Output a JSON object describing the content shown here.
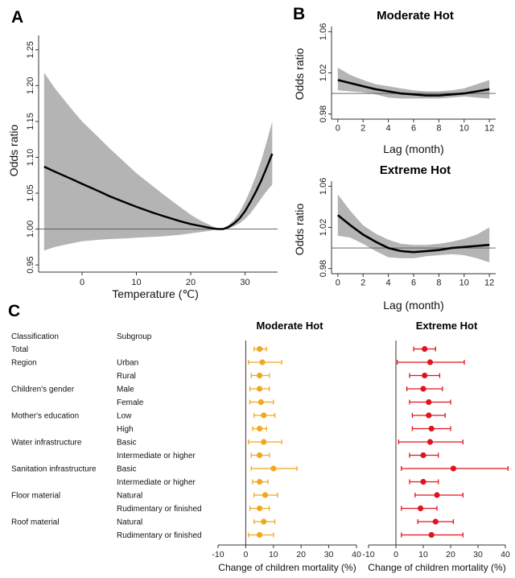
{
  "chart_data": [
    {
      "panel": "A",
      "type": "line",
      "title": "",
      "xlabel": "Temperature (℃)",
      "ylabel": "Odds ratio",
      "xlim": [
        -8,
        36
      ],
      "ylim": [
        0.94,
        1.27
      ],
      "x_ticks": [
        0,
        10,
        20,
        30
      ],
      "y_ticks": [
        0.95,
        1.0,
        1.05,
        1.1,
        1.15,
        1.2,
        1.25
      ],
      "y_tick_labels": [
        "0.95",
        "1.00",
        "1.05",
        "1.10",
        "1.15",
        "1.20",
        "1.25"
      ],
      "reference_line": 1.0,
      "series": [
        {
          "x": [
            -7,
            -5,
            -2,
            0,
            3,
            5,
            8,
            10,
            13,
            15,
            18,
            20,
            22,
            24,
            25,
            25.5,
            26,
            27,
            28,
            29,
            30,
            31,
            32,
            33,
            34,
            35
          ],
          "y": [
            1.087,
            1.08,
            1.07,
            1.063,
            1.053,
            1.046,
            1.037,
            1.031,
            1.023,
            1.018,
            1.011,
            1.007,
            1.004,
            1.001,
            1.0,
            1.0,
            1.0,
            1.003,
            1.008,
            1.015,
            1.025,
            1.038,
            1.052,
            1.068,
            1.086,
            1.105
          ],
          "lower": [
            0.97,
            0.975,
            0.98,
            0.983,
            0.985,
            0.986,
            0.987,
            0.988,
            0.989,
            0.99,
            0.992,
            0.994,
            0.996,
            0.998,
            0.999,
            1.0,
            1.0,
            1.001,
            1.004,
            1.008,
            1.014,
            1.022,
            1.032,
            1.043,
            1.053,
            1.062
          ],
          "upper": [
            1.218,
            1.196,
            1.168,
            1.15,
            1.128,
            1.113,
            1.092,
            1.078,
            1.06,
            1.048,
            1.031,
            1.02,
            1.011,
            1.004,
            1.001,
            1.0,
            1.001,
            1.006,
            1.013,
            1.024,
            1.038,
            1.055,
            1.074,
            1.096,
            1.122,
            1.15
          ]
        }
      ]
    },
    {
      "panel": "B",
      "type": "line",
      "title": "Moderate Hot",
      "xlabel": "Lag (month)",
      "ylabel": "Odds ratio",
      "xlim": [
        -0.5,
        12.5
      ],
      "ylim": [
        0.975,
        1.065
      ],
      "x_ticks": [
        0,
        2,
        4,
        6,
        8,
        10,
        12
      ],
      "y_ticks": [
        0.98,
        1.02,
        1.06
      ],
      "y_tick_labels": [
        "0.98",
        "1.02",
        "1.06"
      ],
      "reference_line": 1.0,
      "series": [
        {
          "x": [
            0,
            1,
            2,
            3,
            4,
            5,
            6,
            7,
            8,
            9,
            10,
            11,
            12
          ],
          "y": [
            1.013,
            1.01,
            1.007,
            1.004,
            1.002,
            1.0,
            0.999,
            0.998,
            0.998,
            0.999,
            1.0,
            1.002,
            1.004
          ],
          "lower": [
            1.003,
            1.002,
            1.001,
            0.999,
            0.996,
            0.995,
            0.995,
            0.995,
            0.995,
            0.996,
            0.997,
            0.996,
            0.995
          ],
          "upper": [
            1.025,
            1.018,
            1.013,
            1.009,
            1.007,
            1.005,
            1.003,
            1.002,
            1.002,
            1.003,
            1.005,
            1.009,
            1.013
          ]
        }
      ]
    },
    {
      "panel": "B",
      "type": "line",
      "title": "Extreme Hot",
      "xlabel": "Lag (month)",
      "ylabel": "Odds ratio",
      "xlim": [
        -0.5,
        12.5
      ],
      "ylim": [
        0.975,
        1.065
      ],
      "x_ticks": [
        0,
        2,
        4,
        6,
        8,
        10,
        12
      ],
      "y_ticks": [
        0.98,
        1.02,
        1.06
      ],
      "y_tick_labels": [
        "0.98",
        "1.02",
        "1.06"
      ],
      "reference_line": 1.0,
      "series": [
        {
          "x": [
            0,
            1,
            2,
            3,
            4,
            5,
            6,
            7,
            8,
            9,
            10,
            11,
            12
          ],
          "y": [
            1.032,
            1.022,
            1.013,
            1.006,
            1.0,
            0.997,
            0.996,
            0.997,
            0.998,
            1.0,
            1.001,
            1.002,
            1.003
          ],
          "lower": [
            1.012,
            1.01,
            1.004,
            0.997,
            0.991,
            0.99,
            0.99,
            0.992,
            0.993,
            0.994,
            0.993,
            0.99,
            0.986
          ],
          "upper": [
            1.052,
            1.036,
            1.022,
            1.014,
            1.008,
            1.004,
            1.003,
            1.003,
            1.004,
            1.006,
            1.009,
            1.013,
            1.02
          ]
        }
      ]
    },
    {
      "panel": "C",
      "type": "forest",
      "column_headers": [
        "Classification",
        "Subgroup"
      ],
      "xlabel": "Change of children mortality (%)",
      "xlim": [
        -10,
        40
      ],
      "x_ticks": [
        -10,
        0,
        10,
        20,
        30,
        40
      ],
      "rows": [
        {
          "classification": "Total",
          "subgroup": ""
        },
        {
          "classification": "Region",
          "subgroup": "Urban"
        },
        {
          "classification": "",
          "subgroup": "Rural"
        },
        {
          "classification": "Children's gender",
          "subgroup": "Male"
        },
        {
          "classification": "",
          "subgroup": "Female"
        },
        {
          "classification": "Mother's education",
          "subgroup": "Low"
        },
        {
          "classification": "",
          "subgroup": "High"
        },
        {
          "classification": "Water infrastructure",
          "subgroup": "Basic"
        },
        {
          "classification": "",
          "subgroup": "Intermediate or higher"
        },
        {
          "classification": "Sanitation infrastructure",
          "subgroup": "Basic"
        },
        {
          "classification": "",
          "subgroup": "Intermediate or higher"
        },
        {
          "classification": "Floor material",
          "subgroup": "Natural"
        },
        {
          "classification": "",
          "subgroup": "Rudimentary or finished"
        },
        {
          "classification": "Roof material",
          "subgroup": "Natural"
        },
        {
          "classification": "",
          "subgroup": "Rudimentary or finished"
        }
      ],
      "series": [
        {
          "name": "Moderate Hot",
          "color": "#f0a81e",
          "est": [
            5.0,
            6.0,
            5.0,
            5.0,
            5.5,
            6.5,
            5.0,
            6.5,
            5.0,
            10.0,
            5.0,
            7.0,
            5.0,
            6.5,
            5.0
          ],
          "lower": [
            3.0,
            1.0,
            2.0,
            1.5,
            1.5,
            3.0,
            2.5,
            1.0,
            2.0,
            2.0,
            2.5,
            3.0,
            1.5,
            3.0,
            1.0
          ],
          "upper": [
            7.5,
            13.0,
            8.5,
            8.5,
            10.0,
            10.5,
            7.5,
            13.0,
            8.5,
            18.5,
            8.0,
            11.5,
            8.5,
            10.5,
            10.0
          ]
        },
        {
          "name": "Extreme Hot",
          "color": "#e0141e",
          "est": [
            10.5,
            12.5,
            10.5,
            10.0,
            12.0,
            12.0,
            13.0,
            12.5,
            10.0,
            21.0,
            10.0,
            15.0,
            9.0,
            14.5,
            13.0
          ],
          "lower": [
            6.5,
            0.5,
            5.0,
            4.0,
            5.0,
            6.0,
            6.0,
            1.0,
            5.0,
            2.0,
            5.0,
            7.0,
            2.0,
            8.0,
            2.0
          ],
          "upper": [
            14.5,
            25.0,
            16.0,
            17.0,
            20.0,
            18.0,
            20.0,
            24.5,
            15.5,
            41.0,
            15.5,
            24.5,
            15.0,
            21.0,
            24.5
          ]
        }
      ]
    }
  ],
  "labels": {
    "panel_a": "A",
    "panel_b": "B",
    "panel_c": "C",
    "moderate_title": "Moderate Hot",
    "extreme_title": "Extreme Hot",
    "odds_ratio": "Odds ratio",
    "temperature": "Temperature (℃)",
    "lag": "Lag (month)"
  }
}
